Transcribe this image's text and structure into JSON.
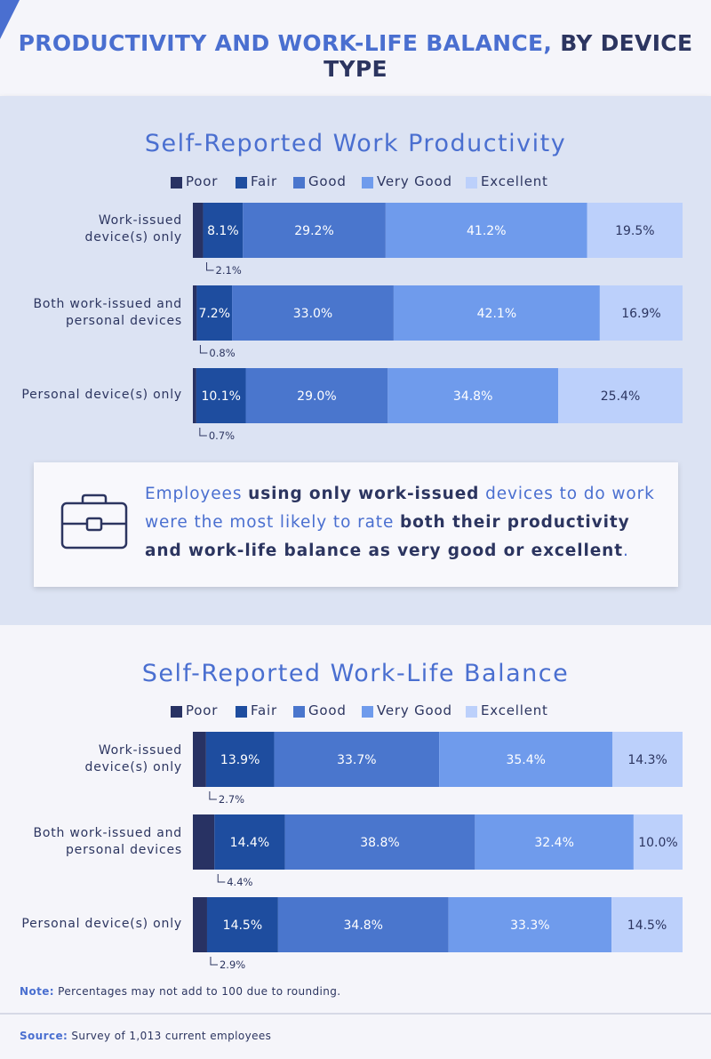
{
  "header": {
    "title_part1": "PRODUCTIVITY AND WORK-LIFE BALANCE,",
    "title_part2": " BY DEVICE TYPE"
  },
  "legend": {
    "items": [
      {
        "label": "Poor",
        "color": "#283263"
      },
      {
        "label": "Fair",
        "color": "#1e4d9f"
      },
      {
        "label": "Good",
        "color": "#4a76cd"
      },
      {
        "label": "Very Good",
        "color": "#6f9bec"
      },
      {
        "label": "Excellent",
        "color": "#bcd0fb"
      }
    ]
  },
  "callout": {
    "icon": "briefcase-icon",
    "text_1": "Employees ",
    "text_2": "using only work-issued",
    "text_3": " devices to do work were the most likely to rate ",
    "text_4": "both their productivity and work-life balance as very good or excellent",
    "text_5": "."
  },
  "note": {
    "label": "Note:",
    "text": " Percentages may not add to 100 due to rounding."
  },
  "source": {
    "label": "Source:",
    "text": " Survey of 1,013 current employees"
  },
  "chart_data": [
    {
      "type": "bar",
      "orientation": "horizontal",
      "stacked": true,
      "title": "Self-Reported Work Productivity",
      "categories": [
        "Work-issued device(s) only",
        "Both work-issued and personal devices",
        "Personal device(s) only"
      ],
      "category_lines": [
        [
          "Work-issued",
          "device(s) only"
        ],
        [
          "Both work-issued and",
          "personal devices"
        ],
        [
          "Personal device(s) only"
        ]
      ],
      "series": [
        {
          "name": "Poor",
          "values": [
            2.1,
            0.8,
            0.7
          ]
        },
        {
          "name": "Fair",
          "values": [
            8.1,
            7.2,
            10.1
          ]
        },
        {
          "name": "Good",
          "values": [
            29.2,
            33.0,
            29.0
          ]
        },
        {
          "name": "Very Good",
          "values": [
            41.2,
            42.1,
            34.8
          ]
        },
        {
          "name": "Excellent",
          "values": [
            19.5,
            16.9,
            25.4
          ]
        }
      ],
      "unit": "%",
      "legend_position": "top"
    },
    {
      "type": "bar",
      "orientation": "horizontal",
      "stacked": true,
      "title": "Self-Reported Work-Life Balance",
      "categories": [
        "Work-issued device(s) only",
        "Both work-issued and personal devices",
        "Personal device(s) only"
      ],
      "category_lines": [
        [
          "Work-issued",
          "device(s) only"
        ],
        [
          "Both work-issued and",
          "personal devices"
        ],
        [
          "Personal device(s) only"
        ]
      ],
      "series": [
        {
          "name": "Poor",
          "values": [
            2.7,
            4.4,
            2.9
          ]
        },
        {
          "name": "Fair",
          "values": [
            13.9,
            14.4,
            14.5
          ]
        },
        {
          "name": "Good",
          "values": [
            33.7,
            38.8,
            34.8
          ]
        },
        {
          "name": "Very Good",
          "values": [
            35.4,
            32.4,
            33.3
          ]
        },
        {
          "name": "Excellent",
          "values": [
            14.3,
            10.0,
            14.5
          ]
        }
      ],
      "unit": "%",
      "legend_position": "top"
    }
  ]
}
